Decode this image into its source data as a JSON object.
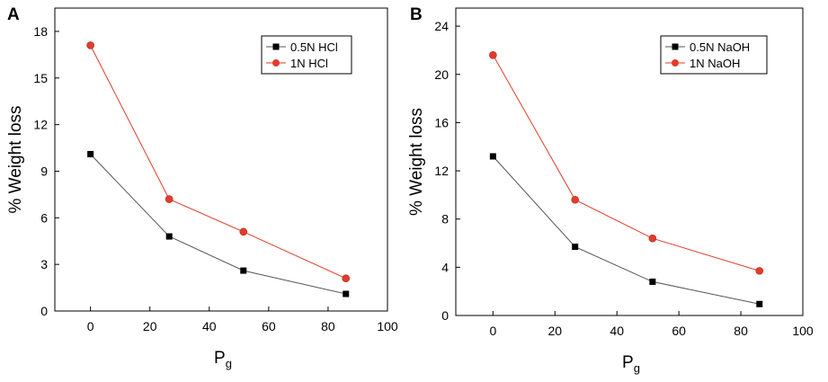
{
  "chart_data": [
    {
      "type": "line",
      "panel": "A",
      "xlabel": "Pg",
      "ylabel": "% Weight loss",
      "xlim": [
        -12,
        100
      ],
      "ylim": [
        0,
        19.5
      ],
      "xticks": [
        0,
        20,
        40,
        60,
        80,
        100
      ],
      "yticks": [
        0,
        3,
        6,
        9,
        12,
        15,
        18
      ],
      "legend_position": "top-right",
      "series": [
        {
          "name": "0.5N HCl",
          "marker": "square",
          "color": "#000000",
          "line_color": "#555555",
          "x": [
            0,
            26.5,
            51.5,
            86
          ],
          "y": [
            10.1,
            4.8,
            2.6,
            1.1
          ]
        },
        {
          "name": "1N HCl",
          "marker": "circle",
          "color": "#e23c2b",
          "line_color": "#e23c2b",
          "x": [
            0,
            26.5,
            51.5,
            86
          ],
          "y": [
            17.1,
            7.2,
            5.1,
            2.1
          ]
        }
      ]
    },
    {
      "type": "line",
      "panel": "B",
      "xlabel": "Pg",
      "ylabel": "% Weight loss",
      "xlim": [
        -12,
        100
      ],
      "ylim": [
        0,
        25.5
      ],
      "xticks": [
        0,
        20,
        40,
        60,
        80,
        100
      ],
      "yticks": [
        0,
        4,
        8,
        12,
        16,
        20,
        24
      ],
      "legend_position": "top-right",
      "series": [
        {
          "name": "0.5N NaOH",
          "marker": "square",
          "color": "#000000",
          "line_color": "#555555",
          "x": [
            0,
            26.5,
            51.5,
            86
          ],
          "y": [
            13.2,
            5.7,
            2.8,
            0.95
          ]
        },
        {
          "name": "1N NaOH",
          "marker": "circle",
          "color": "#e23c2b",
          "line_color": "#e23c2b",
          "x": [
            0,
            26.5,
            51.5,
            86
          ],
          "y": [
            21.6,
            9.6,
            6.4,
            3.7
          ]
        }
      ]
    }
  ]
}
